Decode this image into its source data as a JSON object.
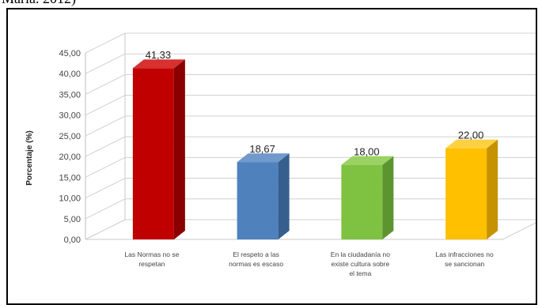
{
  "caption": "María. 2012)",
  "chart_data": {
    "type": "bar",
    "three_d": true,
    "categories": [
      [
        "Las Normas no se",
        "respetan"
      ],
      [
        "El respeto a las",
        "normas es escaso"
      ],
      [
        "En la ciudadanía no",
        "existe cultura sobre",
        "el tema"
      ],
      [
        "Las infracciones no",
        "se  sancionan"
      ]
    ],
    "values": [
      41.33,
      18.67,
      18.0,
      22.0
    ],
    "value_labels": [
      "41,33",
      "18,67",
      "18,00",
      "22,00"
    ],
    "ylabel": "Porcentaje (%)",
    "xlabel": "",
    "ylim": [
      0,
      45
    ],
    "yticks": [
      "0,00",
      "5,00",
      "10,00",
      "15,00",
      "20,00",
      "25,00",
      "30,00",
      "35,00",
      "40,00",
      "45,00"
    ],
    "grid": true,
    "colors": [
      {
        "front": "#c00000",
        "side": "#8a0000",
        "top": "#d93030"
      },
      {
        "front": "#4f81bd",
        "side": "#375f8e",
        "top": "#7199cc"
      },
      {
        "front": "#7fc241",
        "side": "#5c9530",
        "top": "#9bd264"
      },
      {
        "front": "#ffc000",
        "side": "#c79200",
        "top": "#ffd040"
      }
    ]
  }
}
